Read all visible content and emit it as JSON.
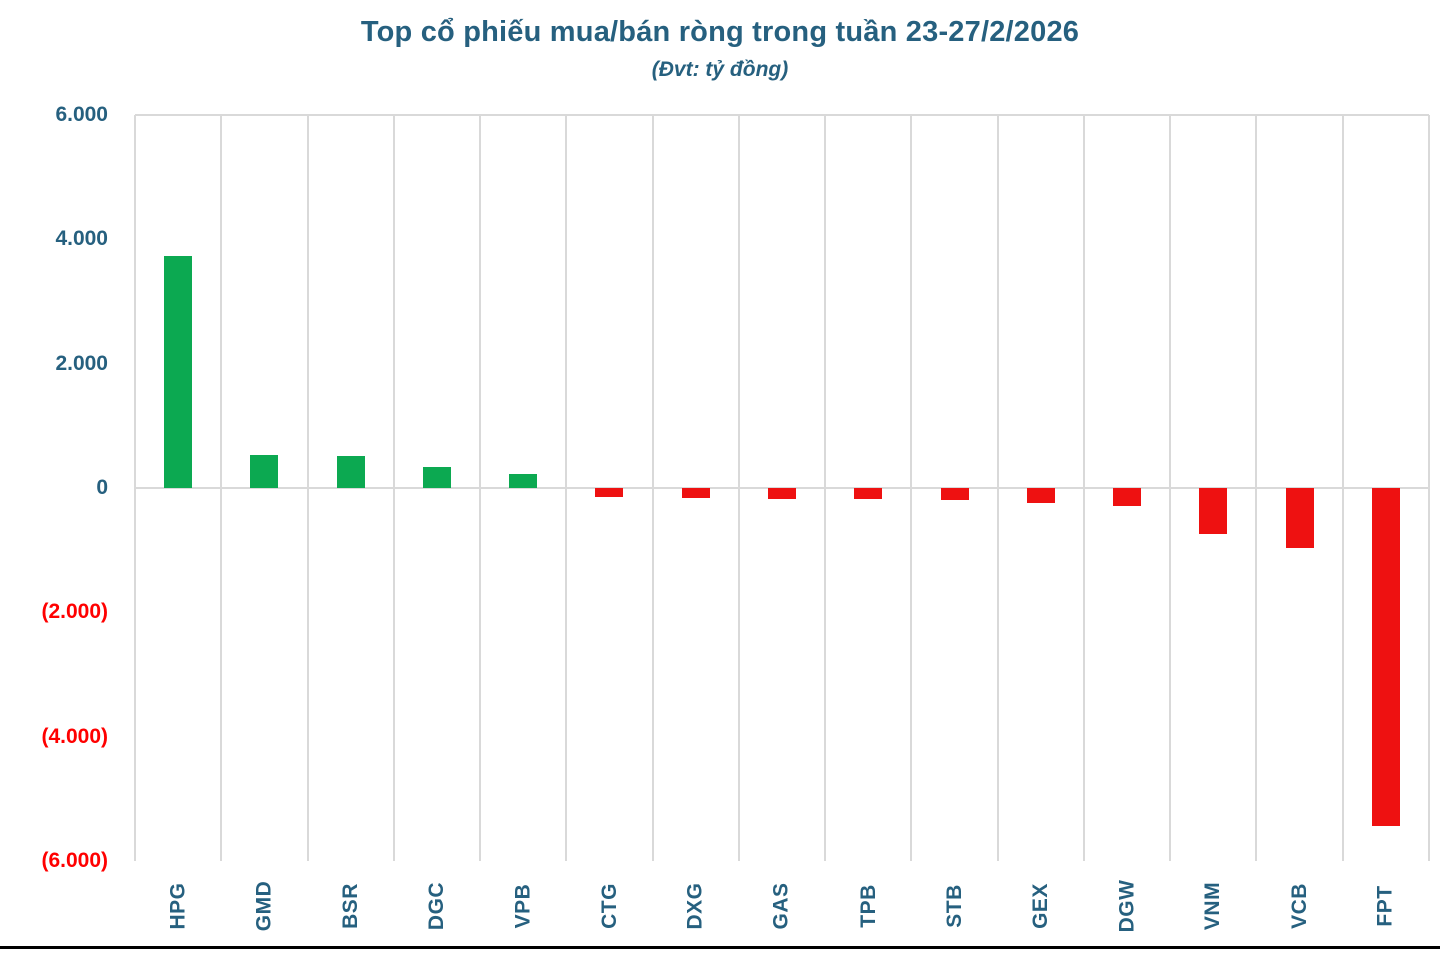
{
  "title": "Top cổ phiếu mua/bán ròng trong tuần 23-27/2/2026",
  "subtitle": "(Đvt: tỷ đồng)",
  "chart_data": {
    "type": "bar",
    "title": "Top cổ phiếu mua/bán ròng trong tuần 23-27/2/2026",
    "subtitle": "(Đvt: tỷ đồng)",
    "unit": "tỷ đồng",
    "categories": [
      "HPG",
      "GMD",
      "BSR",
      "DGC",
      "VPB",
      "CTG",
      "DXG",
      "GAS",
      "TPB",
      "STB",
      "GEX",
      "DGW",
      "VNM",
      "VCB",
      "FPT"
    ],
    "values": [
      3730,
      530,
      510,
      335,
      220,
      -150,
      -165,
      -170,
      -180,
      -185,
      -240,
      -290,
      -740,
      -970,
      -5430
    ],
    "ylim": [
      -6000,
      6000
    ],
    "yticks": [
      {
        "value": 6000,
        "label": "6.000"
      },
      {
        "value": 4000,
        "label": "4.000"
      },
      {
        "value": 2000,
        "label": "2.000"
      },
      {
        "value": 0,
        "label": "0"
      },
      {
        "value": -2000,
        "label": "(2.000)"
      },
      {
        "value": -4000,
        "label": "(4.000)"
      },
      {
        "value": -6000,
        "label": "(6.000)"
      }
    ],
    "grid": "vertical category separators, top border line, zero line; no intermediate horizontal gridlines",
    "legend": "none",
    "colors": {
      "positive_bar": "#0ca951",
      "negative_bar": "#ee1111",
      "title_text": "#26607f",
      "tick_positive": "#26607f",
      "tick_negative": "#ff0000",
      "category_text": "#26607f",
      "gridline": "#d9d9d9",
      "bottom_border": "#000000"
    }
  }
}
